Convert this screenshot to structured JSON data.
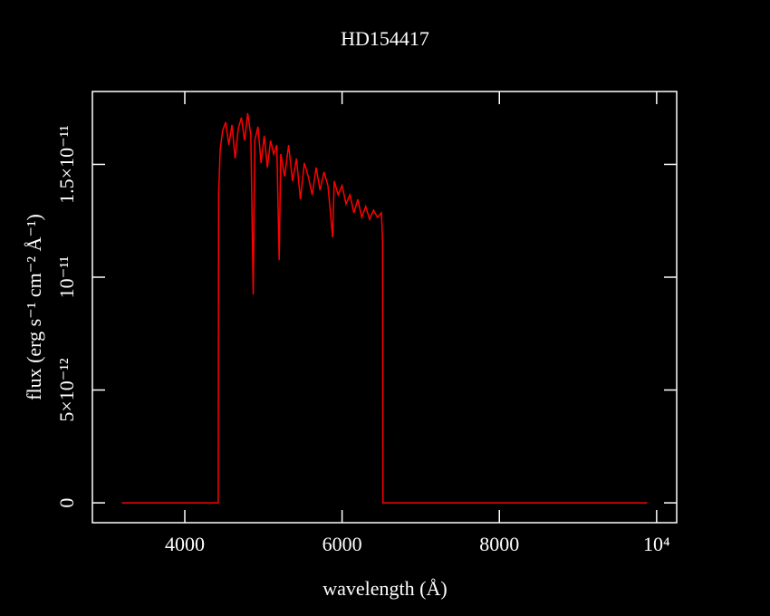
{
  "chart_data": {
    "type": "line",
    "title": "HD154417",
    "x_label": "wavelength (Å)",
    "y_label": "flux (erg s⁻¹ cm⁻² Å⁻¹)",
    "color": "#ff0000",
    "xlim": [
      2825,
      10255
    ],
    "ylim": [
      -8.8e-13,
      1.823e-11
    ],
    "xticks": [
      4000,
      6000,
      8000,
      {
        "value": 10000,
        "label": "10⁴"
      }
    ],
    "yticks": [
      0,
      {
        "value": 5e-12,
        "label": "5×10⁻¹²"
      },
      {
        "value": 1e-11,
        "label": "10⁻¹¹"
      },
      {
        "value": 1.5e-11,
        "label": "1.5×10⁻¹¹"
      }
    ],
    "x": [
      3200,
      4420,
      4425,
      4430,
      4450,
      4480,
      4520,
      4560,
      4600,
      4640,
      4680,
      4720,
      4760,
      4800,
      4840,
      4870,
      4890,
      4930,
      4970,
      5010,
      5050,
      5090,
      5130,
      5170,
      5200,
      5220,
      5270,
      5320,
      5370,
      5420,
      5470,
      5520,
      5570,
      5620,
      5670,
      5720,
      5770,
      5820,
      5880,
      5900,
      5950,
      6000,
      6050,
      6100,
      6150,
      6200,
      6250,
      6300,
      6350,
      6400,
      6450,
      6500,
      6515,
      6520,
      9880
    ],
    "values": [
      0,
      0,
      0,
      1.365e-11,
      1.566e-11,
      1.647e-11,
      1.687e-11,
      1.586e-11,
      1.675e-11,
      1.526e-11,
      1.659e-11,
      1.707e-11,
      1.606e-11,
      1.727e-11,
      1.627e-11,
      9.24e-12,
      1.606e-11,
      1.667e-11,
      1.506e-11,
      1.627e-11,
      1.486e-11,
      1.606e-11,
      1.546e-11,
      1.586e-11,
      1.076e-11,
      1.546e-11,
      1.446e-11,
      1.586e-11,
      1.426e-11,
      1.526e-11,
      1.345e-11,
      1.506e-11,
      1.446e-11,
      1.365e-11,
      1.486e-11,
      1.386e-11,
      1.466e-11,
      1.406e-11,
      1.177e-11,
      1.426e-11,
      1.365e-11,
      1.406e-11,
      1.325e-11,
      1.365e-11,
      1.285e-11,
      1.345e-11,
      1.265e-11,
      1.313e-11,
      1.257e-11,
      1.297e-11,
      1.265e-11,
      1.285e-11,
      1.165e-11,
      0,
      0
    ]
  }
}
